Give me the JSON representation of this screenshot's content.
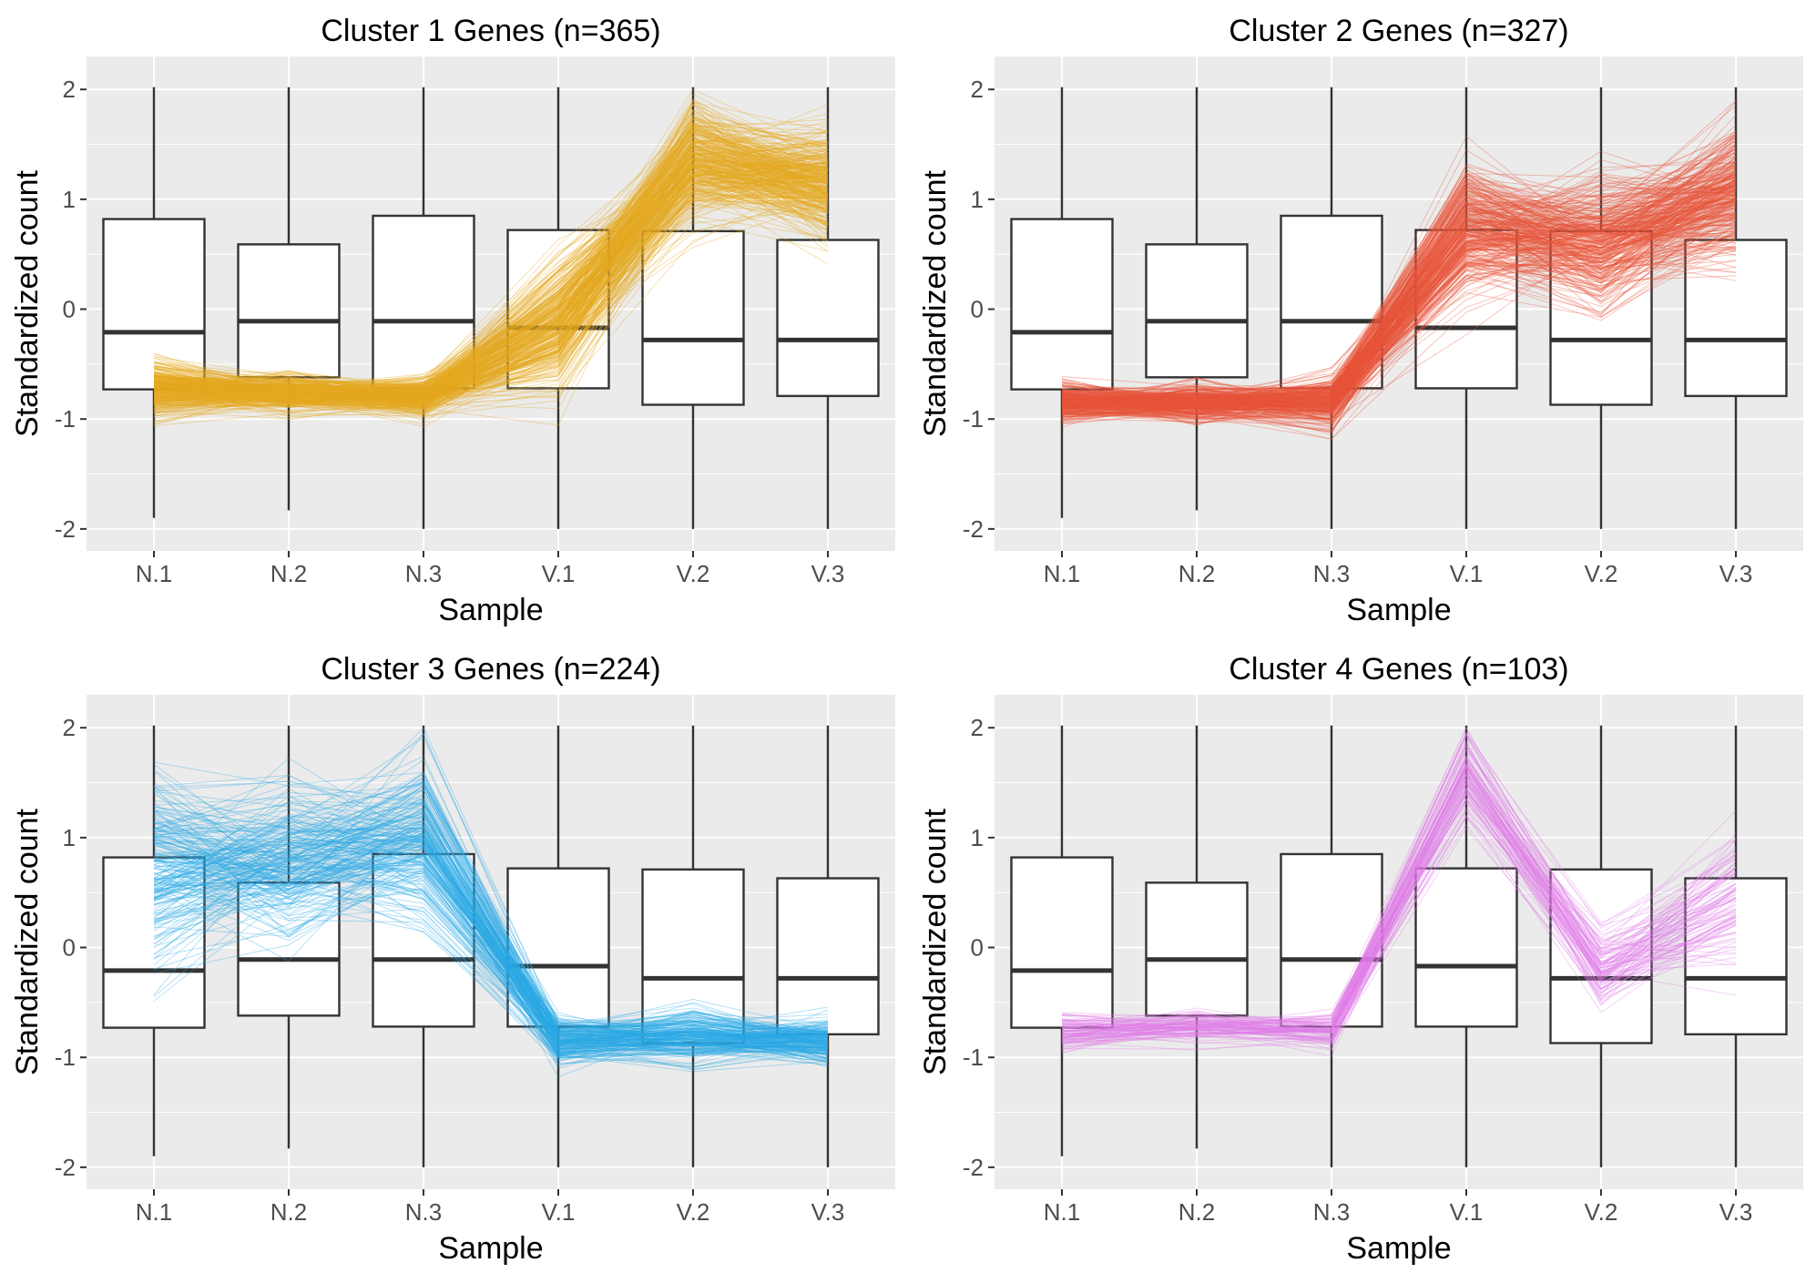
{
  "chart_data": [
    {
      "type": "box+line",
      "title": "Cluster 1 Genes (n=365)",
      "n_genes": 365,
      "color": "#E6A91F",
      "xlabel": "Sample",
      "ylabel": "Standardized count",
      "categories": [
        "N.1",
        "N.2",
        "N.3",
        "V.1",
        "V.2",
        "V.3"
      ],
      "yticks": [
        "-2",
        "-1",
        "0",
        "1",
        "2"
      ],
      "ylim": [
        -2.2,
        2.3
      ],
      "grid": true,
      "boxes": [
        {
          "sample": "N.1",
          "min": -1.9,
          "q1": -0.73,
          "median": -0.21,
          "q3": 0.82,
          "max": 2.02
        },
        {
          "sample": "N.2",
          "min": -1.83,
          "q1": -0.62,
          "median": -0.11,
          "q3": 0.59,
          "max": 2.02
        },
        {
          "sample": "N.3",
          "min": -2.0,
          "q1": -0.72,
          "median": -0.11,
          "q3": 0.85,
          "max": 2.02
        },
        {
          "sample": "V.1",
          "min": -2.0,
          "q1": -0.72,
          "median": -0.17,
          "q3": 0.72,
          "max": 2.02
        },
        {
          "sample": "V.2",
          "min": -2.0,
          "q1": -0.87,
          "median": -0.28,
          "q3": 0.71,
          "max": 2.02
        },
        {
          "sample": "V.3",
          "min": -2.0,
          "q1": -0.79,
          "median": -0.28,
          "q3": 0.63,
          "max": 2.02
        }
      ],
      "profile_mean": [
        -0.72,
        -0.76,
        -0.8,
        -0.15,
        1.35,
        1.15
      ],
      "profile_sd": [
        0.14,
        0.09,
        0.1,
        0.32,
        0.28,
        0.28
      ]
    },
    {
      "type": "box+line",
      "title": "Cluster 2 Genes (n=327)",
      "n_genes": 327,
      "color": "#E8533A",
      "xlabel": "Sample",
      "ylabel": "Standardized count",
      "categories": [
        "N.1",
        "N.2",
        "N.3",
        "V.1",
        "V.2",
        "V.3"
      ],
      "yticks": [
        "-2",
        "-1",
        "0",
        "1",
        "2"
      ],
      "ylim": [
        -2.2,
        2.3
      ],
      "grid": true,
      "boxes": [
        {
          "sample": "N.1",
          "min": -1.9,
          "q1": -0.73,
          "median": -0.21,
          "q3": 0.82,
          "max": 2.02
        },
        {
          "sample": "N.2",
          "min": -1.83,
          "q1": -0.62,
          "median": -0.11,
          "q3": 0.59,
          "max": 2.02
        },
        {
          "sample": "N.3",
          "min": -2.0,
          "q1": -0.72,
          "median": -0.11,
          "q3": 0.85,
          "max": 2.02
        },
        {
          "sample": "V.1",
          "min": -2.0,
          "q1": -0.72,
          "median": -0.17,
          "q3": 0.72,
          "max": 2.02
        },
        {
          "sample": "V.2",
          "min": -2.0,
          "q1": -0.87,
          "median": -0.28,
          "q3": 0.71,
          "max": 2.02
        },
        {
          "sample": "V.3",
          "min": -2.0,
          "q1": -0.79,
          "median": -0.28,
          "q3": 0.63,
          "max": 2.02
        }
      ],
      "profile_mean": [
        -0.85,
        -0.85,
        -0.85,
        0.7,
        0.6,
        1.05
      ],
      "profile_sd": [
        0.1,
        0.1,
        0.12,
        0.32,
        0.32,
        0.35
      ]
    },
    {
      "type": "box+line",
      "title": "Cluster 3 Genes (n=224)",
      "n_genes": 224,
      "color": "#29A8E6",
      "xlabel": "Sample",
      "ylabel": "Standardized count",
      "categories": [
        "N.1",
        "N.2",
        "N.3",
        "V.1",
        "V.2",
        "V.3"
      ],
      "yticks": [
        "-2",
        "-1",
        "0",
        "1",
        "2"
      ],
      "ylim": [
        -2.2,
        2.3
      ],
      "grid": true,
      "boxes": [
        {
          "sample": "N.1",
          "min": -1.9,
          "q1": -0.73,
          "median": -0.21,
          "q3": 0.82,
          "max": 2.02
        },
        {
          "sample": "N.2",
          "min": -1.83,
          "q1": -0.62,
          "median": -0.11,
          "q3": 0.59,
          "max": 2.02
        },
        {
          "sample": "N.3",
          "min": -2.0,
          "q1": -0.72,
          "median": -0.11,
          "q3": 0.85,
          "max": 2.02
        },
        {
          "sample": "V.1",
          "min": -2.0,
          "q1": -0.72,
          "median": -0.17,
          "q3": 0.72,
          "max": 2.02
        },
        {
          "sample": "V.2",
          "min": -2.0,
          "q1": -0.87,
          "median": -0.28,
          "q3": 0.71,
          "max": 2.02
        },
        {
          "sample": "V.3",
          "min": -2.0,
          "q1": -0.79,
          "median": -0.28,
          "q3": 0.63,
          "max": 2.02
        }
      ],
      "profile_mean": [
        0.7,
        0.8,
        0.95,
        -0.85,
        -0.8,
        -0.85
      ],
      "profile_sd": [
        0.5,
        0.38,
        0.4,
        0.12,
        0.14,
        0.11
      ]
    },
    {
      "type": "box+line",
      "title": "Cluster 4 Genes (n=103)",
      "n_genes": 103,
      "color": "#E07BE8",
      "xlabel": "Sample",
      "ylabel": "Standardized count",
      "categories": [
        "N.1",
        "N.2",
        "N.3",
        "V.1",
        "V.2",
        "V.3"
      ],
      "yticks": [
        "-2",
        "-1",
        "0",
        "1",
        "2"
      ],
      "ylim": [
        -2.2,
        2.3
      ],
      "grid": true,
      "boxes": [
        {
          "sample": "N.1",
          "min": -1.9,
          "q1": -0.73,
          "median": -0.21,
          "q3": 0.82,
          "max": 2.02
        },
        {
          "sample": "N.2",
          "min": -1.83,
          "q1": -0.62,
          "median": -0.11,
          "q3": 0.59,
          "max": 2.02
        },
        {
          "sample": "N.3",
          "min": -2.0,
          "q1": -0.72,
          "median": -0.11,
          "q3": 0.85,
          "max": 2.02
        },
        {
          "sample": "V.1",
          "min": -2.0,
          "q1": -0.72,
          "median": -0.17,
          "q3": 0.72,
          "max": 2.02
        },
        {
          "sample": "V.2",
          "min": -2.0,
          "q1": -0.87,
          "median": -0.28,
          "q3": 0.71,
          "max": 2.02
        },
        {
          "sample": "V.3",
          "min": -2.0,
          "q1": -0.79,
          "median": -0.28,
          "q3": 0.63,
          "max": 2.02
        }
      ],
      "profile_mean": [
        -0.78,
        -0.72,
        -0.75,
        1.55,
        -0.2,
        0.45
      ],
      "profile_sd": [
        0.1,
        0.08,
        0.1,
        0.22,
        0.2,
        0.35
      ]
    }
  ]
}
